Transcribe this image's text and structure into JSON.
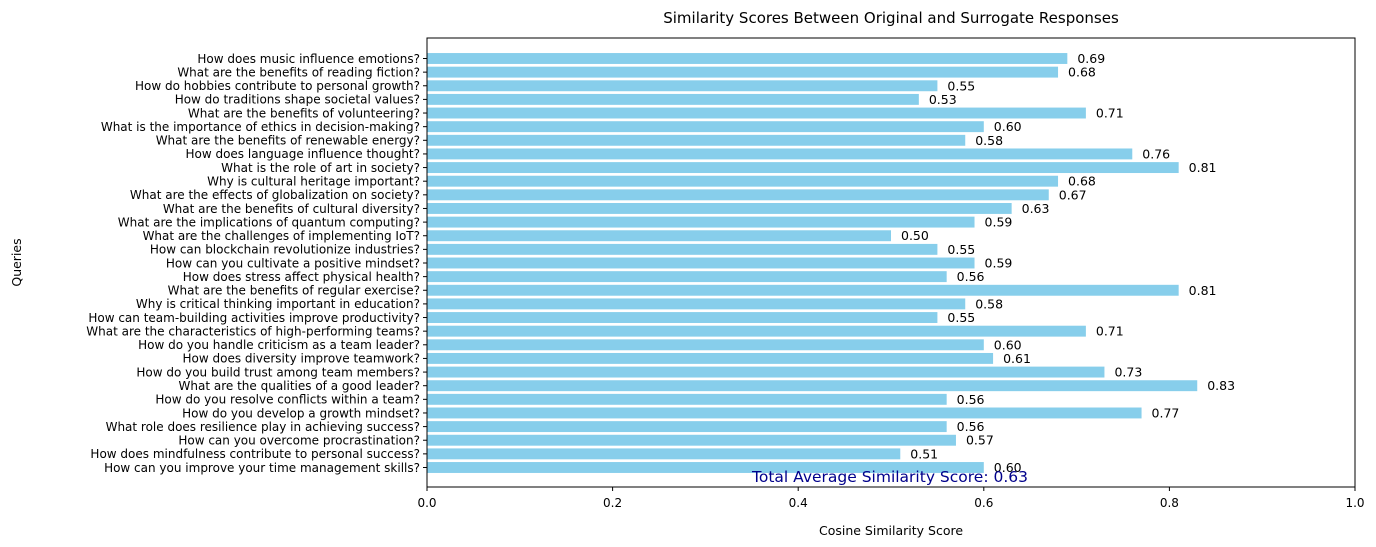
{
  "chart_data": {
    "type": "bar",
    "orientation": "horizontal",
    "title": "Similarity Scores Between Original and Surrogate Responses",
    "xlabel": "Cosine Similarity Score",
    "ylabel": "Queries",
    "xlim": [
      0,
      1.0
    ],
    "xticks": [
      "0.0",
      "0.2",
      "0.4",
      "0.6",
      "0.8",
      "1.0"
    ],
    "bar_color": "#87CEEB",
    "grid": false,
    "categories": [
      "How does music influence emotions?",
      "What are the benefits of reading fiction?",
      "How do hobbies contribute to personal growth?",
      "How do traditions shape societal values?",
      "What are the benefits of volunteering?",
      "What is the importance of ethics in decision-making?",
      "What are the benefits of renewable energy?",
      "How does language influence thought?",
      "What is the role of art in society?",
      "Why is cultural heritage important?",
      "What are the effects of globalization on society?",
      "What are the benefits of cultural diversity?",
      "What are the implications of quantum computing?",
      "What are the challenges of implementing IoT?",
      "How can blockchain revolutionize industries?",
      "How can you cultivate a positive mindset?",
      "How does stress affect physical health?",
      "What are the benefits of regular exercise?",
      "Why is critical thinking important in education?",
      "How can team-building activities improve productivity?",
      "What are the characteristics of high-performing teams?",
      "How do you handle criticism as a team leader?",
      "How does diversity improve teamwork?",
      "How do you build trust among team members?",
      "What are the qualities of a good leader?",
      "How do you resolve conflicts within a team?",
      "How do you develop a growth mindset?",
      "What role does resilience play in achieving success?",
      "How can you overcome procrastination?",
      "How does mindfulness contribute to personal success?",
      "How can you improve your time management skills?"
    ],
    "values": [
      0.69,
      0.68,
      0.55,
      0.53,
      0.71,
      0.6,
      0.58,
      0.76,
      0.81,
      0.68,
      0.67,
      0.63,
      0.59,
      0.5,
      0.55,
      0.59,
      0.56,
      0.81,
      0.58,
      0.55,
      0.71,
      0.6,
      0.61,
      0.73,
      0.83,
      0.56,
      0.77,
      0.56,
      0.57,
      0.51,
      0.6
    ],
    "value_labels": [
      "0.69",
      "0.68",
      "0.55",
      "0.53",
      "0.71",
      "0.60",
      "0.58",
      "0.76",
      "0.81",
      "0.68",
      "0.67",
      "0.63",
      "0.59",
      "0.50",
      "0.55",
      "0.59",
      "0.56",
      "0.81",
      "0.58",
      "0.55",
      "0.71",
      "0.60",
      "0.61",
      "0.73",
      "0.83",
      "0.56",
      "0.77",
      "0.56",
      "0.57",
      "0.51",
      "0.60"
    ],
    "annotation": {
      "text": "Total Average Similarity Score: 0.63",
      "color": "#00008B"
    }
  }
}
